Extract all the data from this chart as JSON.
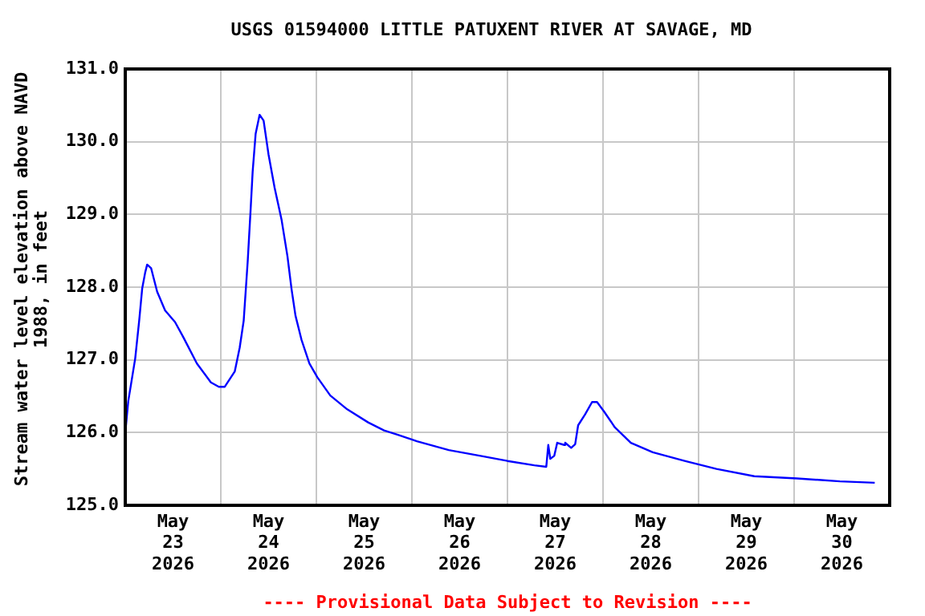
{
  "chart_data": {
    "type": "line",
    "title": "USGS 01594000 LITTLE PATUXENT RIVER AT SAVAGE, MD",
    "ylabel": "Stream water level elevation above NAVD 1988, in feet",
    "annotations": [
      "---- Provisional Data Subject to Revision ----"
    ],
    "x": [
      "2026-05-23T00:00",
      "2026-05-23T00:45",
      "2026-05-23T02:30",
      "2026-05-23T03:30",
      "2026-05-23T04:15",
      "2026-05-23T05:00",
      "2026-05-23T05:30",
      "2026-05-23T06:30",
      "2026-05-23T08:00",
      "2026-05-23T10:00",
      "2026-05-23T12:30",
      "2026-05-23T14:30",
      "2026-05-23T18:00",
      "2026-05-23T21:30",
      "2026-05-23T23:30",
      "2026-05-24T01:00",
      "2026-05-24T03:30",
      "2026-05-24T04:45",
      "2026-05-24T05:45",
      "2026-05-24T06:45",
      "2026-05-24T07:30",
      "2026-05-24T08:00",
      "2026-05-24T08:45",
      "2026-05-24T09:45",
      "2026-05-24T10:45",
      "2026-05-24T12:00",
      "2026-05-24T13:30",
      "2026-05-24T15:15",
      "2026-05-24T16:45",
      "2026-05-24T17:45",
      "2026-05-24T18:45",
      "2026-05-24T20:15",
      "2026-05-24T22:15",
      "2026-05-25T00:15",
      "2026-05-25T03:30",
      "2026-05-25T07:45",
      "2026-05-25T13:00",
      "2026-05-25T17:00",
      "2026-05-25T20:30",
      "2026-05-26T01:15",
      "2026-05-26T09:15",
      "2026-05-26T17:15",
      "2026-05-27T00:00",
      "2026-05-27T06:45",
      "2026-05-27T09:45",
      "2026-05-27T10:15",
      "2026-05-27T10:45",
      "2026-05-27T11:45",
      "2026-05-27T12:30",
      "2026-05-27T14:15",
      "2026-05-27T14:30",
      "2026-05-27T16:00",
      "2026-05-27T17:00",
      "2026-05-27T17:45",
      "2026-05-27T19:30",
      "2026-05-27T21:15",
      "2026-05-27T22:30",
      "2026-05-28T00:15",
      "2026-05-28T03:00",
      "2026-05-28T07:00",
      "2026-05-28T12:30",
      "2026-05-28T20:30",
      "2026-05-29T04:30",
      "2026-05-29T14:00",
      "2026-05-30T00:45",
      "2026-05-30T11:30",
      "2026-05-30T20:15"
    ],
    "series": [
      {
        "color": "#0000ff",
        "values": [
          125.99,
          126.43,
          127.02,
          127.54,
          127.98,
          128.2,
          128.31,
          128.26,
          127.94,
          127.68,
          127.52,
          127.32,
          126.95,
          126.69,
          126.63,
          126.63,
          126.84,
          127.17,
          127.54,
          128.35,
          129.08,
          129.59,
          130.11,
          130.37,
          130.29,
          129.82,
          129.37,
          128.93,
          128.42,
          127.98,
          127.61,
          127.28,
          126.95,
          126.76,
          126.51,
          126.32,
          126.14,
          126.03,
          125.97,
          125.88,
          125.76,
          125.68,
          125.61,
          125.55,
          125.53,
          125.83,
          125.64,
          125.68,
          125.86,
          125.83,
          125.86,
          125.79,
          125.84,
          126.1,
          126.25,
          126.42,
          126.42,
          126.29,
          126.07,
          125.86,
          125.73,
          125.61,
          125.5,
          125.4,
          125.37,
          125.33,
          125.31
        ]
      }
    ],
    "xlim": [
      "2026-05-23T00:00",
      "2026-05-31T00:00"
    ],
    "xticks": [
      {
        "value": "2026-05-23T12:00",
        "label": "May 23 2026"
      },
      {
        "value": "2026-05-24T00:00",
        "label": null
      },
      {
        "value": "2026-05-24T12:00",
        "label": "May 24 2026"
      },
      {
        "value": "2026-05-25T00:00",
        "label": null
      },
      {
        "value": "2026-05-25T12:00",
        "label": "May 25 2026"
      },
      {
        "value": "2026-05-26T00:00",
        "label": null
      },
      {
        "value": "2026-05-26T12:00",
        "label": "May 26 2026"
      },
      {
        "value": "2026-05-27T00:00",
        "label": null
      },
      {
        "value": "2026-05-27T12:00",
        "label": "May 27 2026"
      },
      {
        "value": "2026-05-28T00:00",
        "label": null
      },
      {
        "value": "2026-05-28T12:00",
        "label": "May 28 2026"
      },
      {
        "value": "2026-05-29T00:00",
        "label": null
      },
      {
        "value": "2026-05-29T12:00",
        "label": "May 29 2026"
      },
      {
        "value": "2026-05-30T00:00",
        "label": null
      },
      {
        "value": "2026-05-30T12:00",
        "label": "May 30 2026"
      }
    ],
    "ylim": [
      125,
      131
    ],
    "yticks": [
      {
        "value": 125,
        "label": "125.0"
      },
      {
        "value": 126,
        "label": "126.0"
      },
      {
        "value": 127,
        "label": "127.0"
      },
      {
        "value": 128,
        "label": "128.0"
      },
      {
        "value": 129,
        "label": "129.0"
      },
      {
        "value": 130,
        "label": "130.0"
      },
      {
        "value": 131,
        "label": "131.0"
      }
    ],
    "grid": true,
    "legend": false,
    "marker": "none",
    "line_style": "solid"
  }
}
